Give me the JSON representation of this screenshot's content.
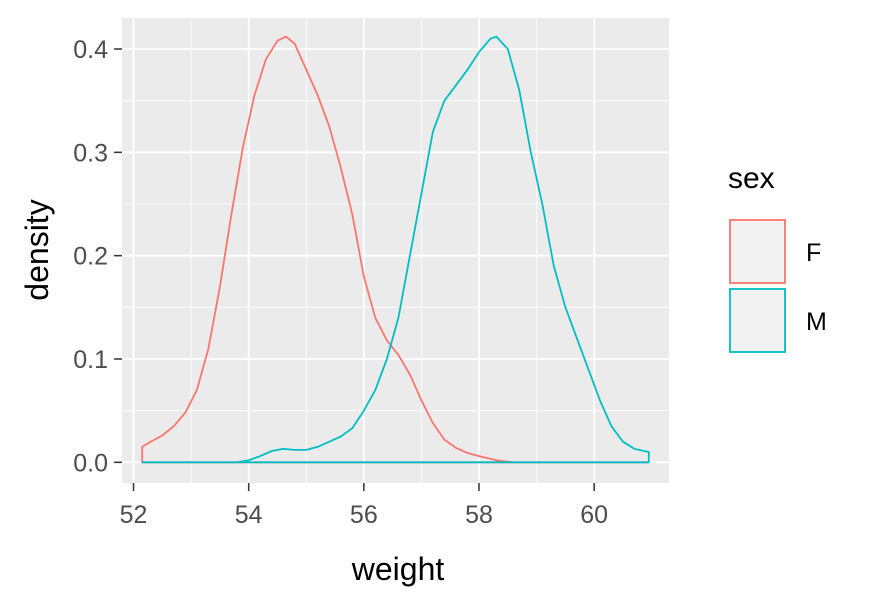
{
  "chart_data": {
    "type": "density",
    "xlabel": "weight",
    "ylabel": "density",
    "xlim": [
      51.8,
      61.3
    ],
    "ylim": [
      -0.02,
      0.43
    ],
    "x_ticks": [
      52,
      54,
      56,
      58,
      60
    ],
    "x_tick_labels": [
      "52",
      "54",
      "56",
      "58",
      "60"
    ],
    "y_ticks": [
      0.0,
      0.1,
      0.2,
      0.3,
      0.4
    ],
    "y_tick_labels": [
      "0.0",
      "0.1",
      "0.2",
      "0.3",
      "0.4"
    ],
    "grid": true,
    "legend": {
      "title": "sex",
      "position": "right"
    },
    "series": [
      {
        "name": "F",
        "color": "#F8766D",
        "points": [
          [
            52.15,
            0.015
          ],
          [
            52.3,
            0.02
          ],
          [
            52.5,
            0.026
          ],
          [
            52.7,
            0.035
          ],
          [
            52.9,
            0.048
          ],
          [
            53.1,
            0.07
          ],
          [
            53.3,
            0.11
          ],
          [
            53.5,
            0.17
          ],
          [
            53.7,
            0.24
          ],
          [
            53.9,
            0.305
          ],
          [
            54.1,
            0.355
          ],
          [
            54.3,
            0.39
          ],
          [
            54.5,
            0.408
          ],
          [
            54.65,
            0.412
          ],
          [
            54.8,
            0.405
          ],
          [
            55.0,
            0.38
          ],
          [
            55.2,
            0.355
          ],
          [
            55.4,
            0.325
          ],
          [
            55.6,
            0.285
          ],
          [
            55.8,
            0.24
          ],
          [
            56.0,
            0.18
          ],
          [
            56.2,
            0.14
          ],
          [
            56.4,
            0.118
          ],
          [
            56.6,
            0.104
          ],
          [
            56.8,
            0.085
          ],
          [
            57.0,
            0.06
          ],
          [
            57.2,
            0.038
          ],
          [
            57.4,
            0.022
          ],
          [
            57.6,
            0.014
          ],
          [
            57.8,
            0.009
          ],
          [
            58.0,
            0.006
          ],
          [
            58.3,
            0.002
          ],
          [
            58.6,
            0.0
          ],
          [
            60.95,
            0.0
          ]
        ]
      },
      {
        "name": "M",
        "color": "#00BFC4",
        "points": [
          [
            52.15,
            0.0
          ],
          [
            53.8,
            0.0
          ],
          [
            54.0,
            0.002
          ],
          [
            54.2,
            0.006
          ],
          [
            54.4,
            0.011
          ],
          [
            54.6,
            0.013
          ],
          [
            54.8,
            0.012
          ],
          [
            55.0,
            0.012
          ],
          [
            55.2,
            0.015
          ],
          [
            55.4,
            0.02
          ],
          [
            55.6,
            0.025
          ],
          [
            55.8,
            0.033
          ],
          [
            56.0,
            0.05
          ],
          [
            56.2,
            0.07
          ],
          [
            56.4,
            0.1
          ],
          [
            56.6,
            0.14
          ],
          [
            56.8,
            0.2
          ],
          [
            57.0,
            0.26
          ],
          [
            57.2,
            0.32
          ],
          [
            57.4,
            0.35
          ],
          [
            57.6,
            0.365
          ],
          [
            57.8,
            0.38
          ],
          [
            58.0,
            0.397
          ],
          [
            58.2,
            0.41
          ],
          [
            58.3,
            0.412
          ],
          [
            58.5,
            0.4
          ],
          [
            58.7,
            0.36
          ],
          [
            58.9,
            0.3
          ],
          [
            59.1,
            0.25
          ],
          [
            59.3,
            0.19
          ],
          [
            59.5,
            0.15
          ],
          [
            59.7,
            0.12
          ],
          [
            59.9,
            0.09
          ],
          [
            60.1,
            0.06
          ],
          [
            60.3,
            0.035
          ],
          [
            60.5,
            0.02
          ],
          [
            60.7,
            0.013
          ],
          [
            60.95,
            0.01
          ],
          [
            60.95,
            0.0
          ]
        ]
      }
    ]
  }
}
